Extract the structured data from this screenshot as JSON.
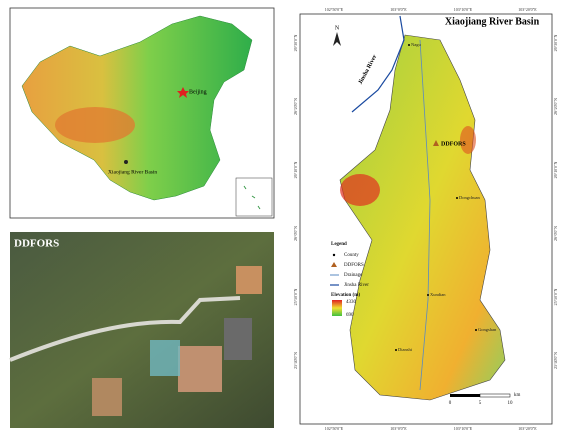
{
  "china_map": {
    "capital": "Beijing",
    "basin": "Xiaojiang River Basin"
  },
  "photo": {
    "label": "DDFORS"
  },
  "basin_map": {
    "title": "Xiaojiang River Basin",
    "north": "N",
    "river_label": "Jinsha River",
    "station": "DDFORS",
    "towns": [
      "Nagu",
      "Dongchuan",
      "Xundian",
      "Dianshi",
      "Gongshan"
    ],
    "lon_labels": [
      "102°50'0\"E",
      "103°0'0\"E",
      "103°10'0\"E",
      "103°20'0\"E"
    ],
    "lat_labels": [
      "26°30'0\"N",
      "26°20'0\"N",
      "26°10'0\"N",
      "26°0'0\"N",
      "25°50'0\"N",
      "25°40'0\"N"
    ],
    "legend": {
      "title": "Legend",
      "items": [
        "County",
        "DDFORS",
        "Drainage",
        "Jinsha River"
      ],
      "elevation_title": "Elevation (m)",
      "elevation_high": "4330",
      "elevation_low": "690"
    },
    "scale": {
      "labels": [
        "0",
        "5",
        "10"
      ],
      "unit": "km"
    }
  }
}
